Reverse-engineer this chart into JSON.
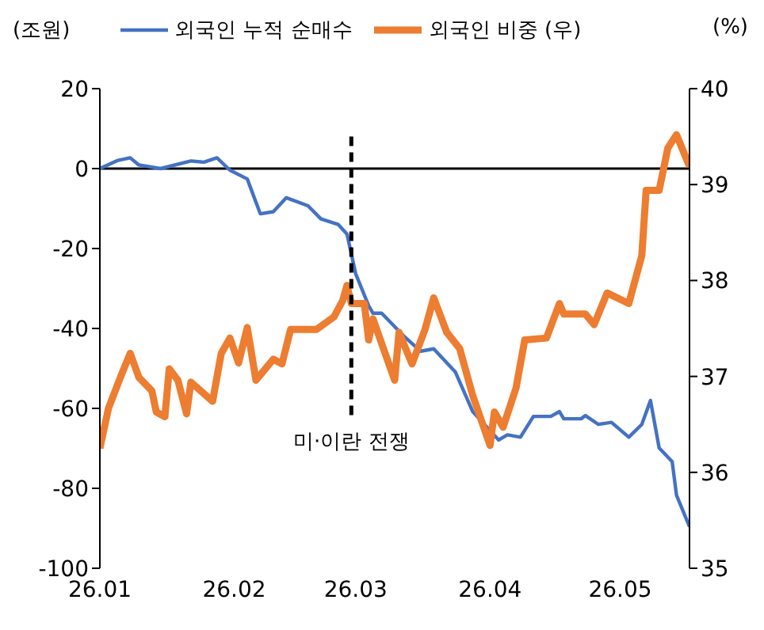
{
  "chart_data": {
    "type": "line",
    "ylabel": "(조원)",
    "y2label": "(%)",
    "legend": "top",
    "xlim": [
      "--01-01",
      "--05-17"
    ],
    "xticks": [
      {
        "value": "--01-01",
        "label": "26.01"
      },
      {
        "value": "--02-01",
        "label": "26.02"
      },
      {
        "value": "--03-01",
        "label": "26.03"
      },
      {
        "value": "--04-01",
        "label": "26.04"
      },
      {
        "value": "--05-01",
        "label": "26.05"
      }
    ],
    "ylim": [
      -100,
      20
    ],
    "yticks": [
      -100,
      -80,
      -60,
      -40,
      -20,
      0,
      20
    ],
    "y2lim": [
      35,
      40
    ],
    "y2ticks": [
      35,
      36,
      37,
      38,
      39,
      40
    ],
    "ref_lines": [
      {
        "axis": "x",
        "value": "--02-28",
        "label": "미·이란 전쟁",
        "line_style": "dashed",
        "color": "#000000"
      }
    ],
    "series": [
      {
        "name": "외국인 누적 순매수",
        "color": "#4472c4",
        "axis": "y",
        "x": [
          "--01-01",
          "--01-05",
          "--01-08",
          "--01-10",
          "--01-15",
          "--01-22",
          "--01-25",
          "--01-28",
          "--01-31",
          "--02-04",
          "--02-07",
          "--02-10",
          "--02-13",
          "--02-18",
          "--02-21",
          "--02-25",
          "--02-27",
          "--03-01",
          "--03-04",
          "--03-05",
          "--03-07",
          "--03-12",
          "--03-16",
          "--03-19",
          "--03-24",
          "--03-28",
          "--04-03",
          "--04-05",
          "--04-08",
          "--04-11",
          "--04-15",
          "--04-17",
          "--04-18",
          "--04-22",
          "--04-23",
          "--04-26",
          "--04-29",
          "--05-03",
          "--05-06",
          "--05-08",
          "--05-10",
          "--05-13",
          "--05-14",
          "--05-17"
        ],
        "values": [
          0,
          2,
          2.7,
          0.9,
          0,
          1.9,
          1.6,
          2.7,
          -0.4,
          -2.6,
          -11.3,
          -10.8,
          -7.3,
          -9.3,
          -12.6,
          -14,
          -16.4,
          -26.3,
          -34.3,
          -36.2,
          -36.2,
          -41.8,
          -45.7,
          -45.1,
          -50.9,
          -60.8,
          -67.9,
          -66.6,
          -67.2,
          -62,
          -62,
          -60.8,
          -62.6,
          -62.6,
          -61.8,
          -64,
          -63.5,
          -67.2,
          -64,
          -58,
          -69.9,
          -73.3,
          -81.7,
          -89.6
        ]
      },
      {
        "name": "외국인 비중 (우)",
        "color": "#ed7d31",
        "axis": "y2",
        "x": [
          "--01-01",
          "--01-03",
          "--01-06",
          "--01-08",
          "--01-10",
          "--01-13",
          "--01-14",
          "--01-16",
          "--01-17",
          "--01-19",
          "--01-21",
          "--01-22",
          "--01-27",
          "--01-29",
          "--01-31",
          "--02-02",
          "--02-04",
          "--02-06",
          "--02-10",
          "--02-12",
          "--02-14",
          "--02-20",
          "--02-24",
          "--02-26",
          "--02-27",
          "--02-28",
          "--03-02",
          "--03-03",
          "--03-04",
          "--03-05",
          "--03-10",
          "--03-11",
          "--03-14",
          "--03-17",
          "--03-19",
          "--03-22",
          "--03-25",
          "--03-28",
          "--04-01",
          "--04-02",
          "--04-04",
          "--04-07",
          "--04-09",
          "--04-14",
          "--04-17",
          "--04-18",
          "--04-23",
          "--04-25",
          "--04-28",
          "--05-03",
          "--05-06",
          "--05-07",
          "--05-10",
          "--05-12",
          "--05-14",
          "--05-17"
        ],
        "values": [
          36.25,
          36.67,
          37.02,
          37.24,
          36.99,
          36.85,
          36.63,
          36.58,
          37.08,
          36.96,
          36.61,
          36.94,
          36.74,
          37.24,
          37.4,
          37.14,
          37.51,
          36.96,
          37.18,
          37.13,
          37.49,
          37.49,
          37.62,
          37.79,
          37.95,
          37.76,
          37.76,
          37.76,
          37.38,
          37.6,
          36.96,
          37.46,
          37.13,
          37.49,
          37.82,
          37.46,
          37.29,
          36.8,
          36.28,
          36.63,
          36.47,
          36.88,
          37.38,
          37.4,
          37.76,
          37.65,
          37.65,
          37.54,
          37.87,
          37.76,
          38.26,
          38.94,
          38.94,
          39.38,
          39.52,
          39.19
        ]
      }
    ]
  }
}
